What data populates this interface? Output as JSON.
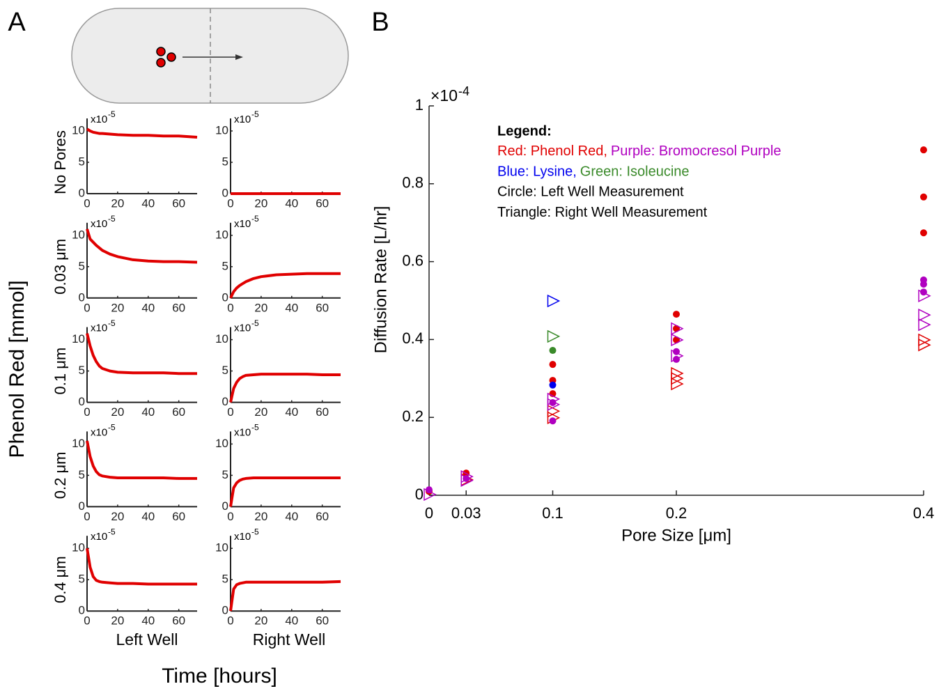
{
  "figure": {
    "panel_a_label": "A",
    "panel_b_label": "B",
    "y_label": "Phenol Red [mmol]",
    "x_label": "Time [hours]",
    "columns": [
      "Left Well",
      "Right Well"
    ],
    "rows": [
      "No Pores",
      "0.03 μm",
      "0.1 μm",
      "0.2 μm",
      "0.4 μm"
    ]
  },
  "chart_data": [
    {
      "type": "line",
      "x": [
        0,
        2,
        4,
        6,
        8,
        10,
        15,
        20,
        30,
        40,
        50,
        60,
        72
      ],
      "xlim": [
        0,
        72
      ],
      "ylim": [
        0,
        12
      ],
      "xticks": [
        0,
        20,
        40,
        60
      ],
      "yticks": [
        0,
        5,
        10
      ],
      "y_exponent": [
        "x10",
        "-5"
      ],
      "series": [
        {
          "color": "#e00000",
          "values": [
            10.3,
            10.0,
            9.8,
            9.7,
            9.6,
            9.6,
            9.5,
            9.4,
            9.3,
            9.3,
            9.2,
            9.2,
            9.0
          ]
        }
      ]
    },
    {
      "type": "line",
      "x": [
        0,
        2,
        4,
        6,
        8,
        10,
        15,
        20,
        30,
        40,
        50,
        60,
        72
      ],
      "xlim": [
        0,
        72
      ],
      "ylim": [
        0,
        12
      ],
      "xticks": [
        0,
        20,
        40,
        60
      ],
      "yticks": [
        0,
        5,
        10
      ],
      "y_exponent": [
        "x10",
        "-5"
      ],
      "series": [
        {
          "color": "#e00000",
          "values": [
            0,
            0,
            0,
            0,
            0,
            0,
            0,
            0,
            0,
            0,
            0,
            0,
            0
          ]
        }
      ]
    },
    {
      "type": "line",
      "x": [
        0,
        2,
        4,
        6,
        8,
        10,
        15,
        20,
        30,
        40,
        50,
        60,
        72
      ],
      "xlim": [
        0,
        72
      ],
      "ylim": [
        0,
        12
      ],
      "xticks": [
        0,
        20,
        40,
        60
      ],
      "yticks": [
        0,
        5,
        10
      ],
      "y_exponent": [
        "x10",
        "-5"
      ],
      "series": [
        {
          "color": "#e00000",
          "values": [
            11,
            9.4,
            8.9,
            8.4,
            8.0,
            7.6,
            7.0,
            6.6,
            6.1,
            5.9,
            5.8,
            5.8,
            5.7
          ]
        }
      ]
    },
    {
      "type": "line",
      "x": [
        0,
        2,
        4,
        6,
        8,
        10,
        15,
        20,
        30,
        40,
        50,
        60,
        72
      ],
      "xlim": [
        0,
        72
      ],
      "ylim": [
        0,
        12
      ],
      "xticks": [
        0,
        20,
        40,
        60
      ],
      "yticks": [
        0,
        5,
        10
      ],
      "y_exponent": [
        "x10",
        "-5"
      ],
      "series": [
        {
          "color": "#e00000",
          "values": [
            0,
            1.0,
            1.6,
            2.0,
            2.3,
            2.6,
            3.1,
            3.4,
            3.7,
            3.8,
            3.9,
            3.9,
            3.9
          ]
        }
      ]
    },
    {
      "type": "line",
      "x": [
        0,
        2,
        4,
        6,
        8,
        10,
        15,
        20,
        30,
        40,
        50,
        60,
        72
      ],
      "xlim": [
        0,
        72
      ],
      "ylim": [
        0,
        12
      ],
      "xticks": [
        0,
        20,
        40,
        60
      ],
      "yticks": [
        0,
        5,
        10
      ],
      "y_exponent": [
        "x10",
        "-5"
      ],
      "series": [
        {
          "color": "#e00000",
          "values": [
            11,
            9,
            7.5,
            6.5,
            5.8,
            5.4,
            5.0,
            4.8,
            4.7,
            4.7,
            4.7,
            4.6,
            4.6
          ]
        }
      ]
    },
    {
      "type": "line",
      "x": [
        0,
        2,
        4,
        6,
        8,
        10,
        15,
        20,
        30,
        40,
        50,
        60,
        72
      ],
      "xlim": [
        0,
        72
      ],
      "ylim": [
        0,
        12
      ],
      "xticks": [
        0,
        20,
        40,
        60
      ],
      "yticks": [
        0,
        5,
        10
      ],
      "y_exponent": [
        "x10",
        "-5"
      ],
      "series": [
        {
          "color": "#e00000",
          "values": [
            0,
            2.2,
            3.2,
            3.8,
            4.1,
            4.3,
            4.4,
            4.5,
            4.5,
            4.5,
            4.5,
            4.4,
            4.4
          ]
        }
      ]
    },
    {
      "type": "line",
      "x": [
        0,
        2,
        4,
        6,
        8,
        10,
        15,
        20,
        30,
        40,
        50,
        60,
        72
      ],
      "xlim": [
        0,
        72
      ],
      "ylim": [
        0,
        12
      ],
      "xticks": [
        0,
        20,
        40,
        60
      ],
      "yticks": [
        0,
        5,
        10
      ],
      "y_exponent": [
        "x10",
        "-5"
      ],
      "series": [
        {
          "color": "#e00000",
          "values": [
            10.5,
            8,
            6.5,
            5.6,
            5.1,
            4.9,
            4.7,
            4.6,
            4.6,
            4.6,
            4.6,
            4.5,
            4.5
          ]
        }
      ]
    },
    {
      "type": "line",
      "x": [
        0,
        2,
        4,
        6,
        8,
        10,
        15,
        20,
        30,
        40,
        50,
        60,
        72
      ],
      "xlim": [
        0,
        72
      ],
      "ylim": [
        0,
        12
      ],
      "xticks": [
        0,
        20,
        40,
        60
      ],
      "yticks": [
        0,
        5,
        10
      ],
      "y_exponent": [
        "x10",
        "-5"
      ],
      "series": [
        {
          "color": "#e00000",
          "values": [
            0,
            3.0,
            3.8,
            4.2,
            4.4,
            4.5,
            4.6,
            4.6,
            4.6,
            4.6,
            4.6,
            4.6,
            4.6
          ]
        }
      ]
    },
    {
      "type": "line",
      "x": [
        0,
        2,
        4,
        6,
        8,
        10,
        15,
        20,
        30,
        40,
        50,
        60,
        72
      ],
      "xlim": [
        0,
        72
      ],
      "ylim": [
        0,
        12
      ],
      "xticks": [
        0,
        20,
        40,
        60
      ],
      "yticks": [
        0,
        5,
        10
      ],
      "y_exponent": [
        "x10",
        "-5"
      ],
      "series": [
        {
          "color": "#e00000",
          "values": [
            10,
            7,
            5.5,
            4.9,
            4.7,
            4.6,
            4.5,
            4.4,
            4.4,
            4.3,
            4.3,
            4.3,
            4.3
          ]
        }
      ]
    },
    {
      "type": "line",
      "x": [
        0,
        2,
        4,
        6,
        8,
        10,
        15,
        20,
        30,
        40,
        50,
        60,
        72
      ],
      "xlim": [
        0,
        72
      ],
      "ylim": [
        0,
        12
      ],
      "xticks": [
        0,
        20,
        40,
        60
      ],
      "yticks": [
        0,
        5,
        10
      ],
      "y_exponent": [
        "x10",
        "-5"
      ],
      "series": [
        {
          "color": "#e00000",
          "values": [
            0,
            3.5,
            4.2,
            4.4,
            4.5,
            4.6,
            4.6,
            4.6,
            4.6,
            4.6,
            4.6,
            4.6,
            4.7
          ]
        }
      ]
    },
    {
      "type": "scatter",
      "x_label": "Pore Size [μm]",
      "y_label": "Diffusion Rate [L/hr]",
      "y_exponent": [
        "×10",
        "-4"
      ],
      "xlim": [
        0,
        0.4
      ],
      "ylim": [
        0,
        1
      ],
      "xticks": [
        0,
        0.03,
        0.1,
        0.2,
        0.4
      ],
      "yticks": [
        0,
        0.2,
        0.4,
        0.6,
        0.8,
        1
      ],
      "legend": {
        "title": "Legend:",
        "lines": [
          [
            {
              "text": "Red: Phenol Red,",
              "color": "#e00000"
            },
            {
              "text": "Purple: Bromocresol Purple",
              "color": "#b000c0"
            }
          ],
          [
            {
              "text": "Blue: Lysine,",
              "color": "#0000ee"
            },
            {
              "text": "Green: Isoleucine",
              "color": "#3a8a2a"
            }
          ],
          [
            {
              "text": "Circle: Left Well Measurement",
              "color": "#000000"
            }
          ],
          [
            {
              "text": "Triangle: Right Well Measurement",
              "color": "#000000"
            }
          ]
        ]
      },
      "series": [
        {
          "marker": "circle",
          "color": "#e00000",
          "x": [
            0,
            0.03,
            0.1,
            0.1,
            0.1,
            0.2,
            0.2,
            0.2,
            0.4,
            0.4,
            0.4
          ],
          "values": [
            0.01,
            0.057,
            0.336,
            0.295,
            0.261,
            0.465,
            0.428,
            0.399,
            0.887,
            0.766,
            0.674
          ]
        },
        {
          "marker": "triangle",
          "color": "#e00000",
          "x": [
            0.03,
            0.1,
            0.1,
            0.2,
            0.2,
            0.2,
            0.4,
            0.4
          ],
          "values": [
            0.04,
            0.216,
            0.199,
            0.313,
            0.3,
            0.286,
            0.399,
            0.386
          ]
        },
        {
          "marker": "circle",
          "color": "#b000c0",
          "x": [
            0,
            0.03,
            0.1,
            0.1,
            0.2,
            0.2,
            0.4,
            0.4,
            0.4
          ],
          "values": [
            0.014,
            0.043,
            0.238,
            0.191,
            0.369,
            0.349,
            0.553,
            0.542,
            0.522
          ]
        },
        {
          "marker": "triangle",
          "color": "#b000c0",
          "x": [
            0,
            0.03,
            0.03,
            0.1,
            0.1,
            0.2,
            0.2,
            0.2,
            0.4,
            0.4,
            0.4
          ],
          "values": [
            0.002,
            0.038,
            0.048,
            0.247,
            0.233,
            0.428,
            0.399,
            0.358,
            0.512,
            0.463,
            0.438
          ]
        },
        {
          "marker": "circle",
          "color": "#0000ee",
          "x": [
            0.1
          ],
          "values": [
            0.283
          ]
        },
        {
          "marker": "triangle",
          "color": "#0000ee",
          "x": [
            0.1
          ],
          "values": [
            0.499
          ]
        },
        {
          "marker": "circle",
          "color": "#3a8a2a",
          "x": [
            0.1
          ],
          "values": [
            0.372
          ]
        },
        {
          "marker": "triangle",
          "color": "#3a8a2a",
          "x": [
            0.1
          ],
          "values": [
            0.408
          ]
        }
      ]
    }
  ]
}
